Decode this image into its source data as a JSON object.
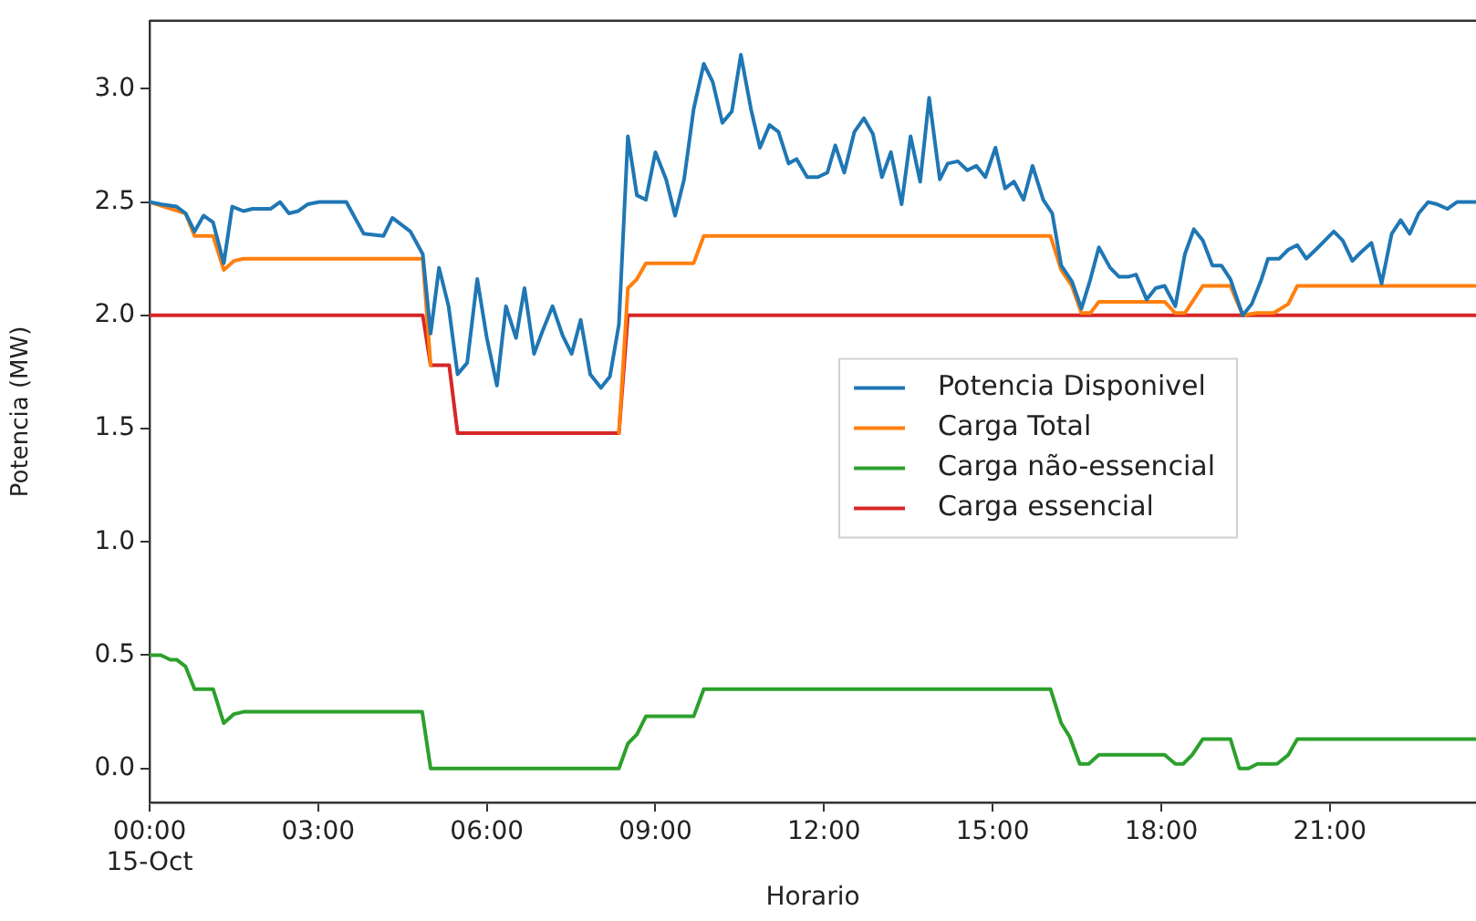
{
  "chart_data": {
    "type": "line",
    "xlabel": "Horario",
    "ylabel": "Potencia (MW)",
    "xlim": [
      0,
      23.6
    ],
    "ylim": [
      -0.15,
      3.3
    ],
    "xticks": [
      {
        "value": 0,
        "label": "00:00\n15-Oct"
      },
      {
        "value": 3,
        "label": "03:00"
      },
      {
        "value": 6,
        "label": "06:00"
      },
      {
        "value": 9,
        "label": "09:00"
      },
      {
        "value": 12,
        "label": "12:00"
      },
      {
        "value": 15,
        "label": "15:00"
      },
      {
        "value": 18,
        "label": "18:00"
      },
      {
        "value": 21,
        "label": "21:00"
      }
    ],
    "yticks": [
      {
        "value": 0,
        "label": "0.0"
      },
      {
        "value": 0.5,
        "label": "0.5"
      },
      {
        "value": 1,
        "label": "1.0"
      },
      {
        "value": 1.5,
        "label": "1.5"
      },
      {
        "value": 2,
        "label": "2.0"
      },
      {
        "value": 2.5,
        "label": "2.5"
      },
      {
        "value": 3,
        "label": "3.0"
      }
    ],
    "grid": false,
    "legend": "center right",
    "marker": "none",
    "line_style": "solid",
    "series": [
      {
        "name": "Potencia Disponivel",
        "color": "#1f77b4",
        "x": [
          0,
          0.2,
          0.48,
          0.64,
          0.8,
          0.96,
          1.13,
          1.32,
          1.47,
          1.67,
          1.83,
          1.99,
          2.15,
          2.32,
          2.48,
          2.64,
          2.81,
          3.02,
          3.5,
          3.81,
          4.16,
          4.32,
          4.64,
          4.86,
          5.0,
          5.15,
          5.32,
          5.48,
          5.65,
          5.83,
          6.0,
          6.18,
          6.34,
          6.52,
          6.67,
          6.84,
          6.99,
          7.17,
          7.35,
          7.51,
          7.67,
          7.84,
          8.03,
          8.19,
          8.35,
          8.51,
          8.67,
          8.83,
          9.0,
          9.19,
          9.35,
          9.51,
          9.68,
          9.86,
          10.02,
          10.19,
          10.36,
          10.52,
          10.7,
          10.86,
          11.03,
          11.19,
          11.37,
          11.51,
          11.7,
          11.89,
          12.06,
          12.2,
          12.36,
          12.54,
          12.71,
          12.87,
          13.03,
          13.19,
          13.38,
          13.54,
          13.71,
          13.87,
          14.06,
          14.2,
          14.38,
          14.55,
          14.71,
          14.87,
          15.05,
          15.22,
          15.38,
          15.55,
          15.71,
          15.9,
          16.06,
          16.22,
          16.41,
          16.58,
          16.74,
          16.89,
          17.09,
          17.25,
          17.41,
          17.55,
          17.74,
          17.9,
          18.06,
          18.25,
          18.42,
          18.58,
          18.74,
          18.91,
          19.07,
          19.23,
          19.45,
          19.61,
          19.77,
          19.9,
          20.1,
          20.26,
          20.42,
          20.58,
          20.75,
          20.91,
          21.07,
          21.23,
          21.4,
          21.56,
          21.74,
          21.92,
          22.1,
          22.26,
          22.42,
          22.58,
          22.75,
          22.91,
          23.09,
          23.26,
          23.6
        ],
        "values": [
          2.5,
          2.49,
          2.48,
          2.45,
          2.37,
          2.44,
          2.41,
          2.23,
          2.48,
          2.46,
          2.47,
          2.47,
          2.47,
          2.5,
          2.45,
          2.46,
          2.49,
          2.5,
          2.5,
          2.36,
          2.35,
          2.43,
          2.37,
          2.27,
          1.92,
          2.21,
          2.04,
          1.74,
          1.79,
          2.16,
          1.9,
          1.69,
          2.04,
          1.9,
          2.12,
          1.83,
          1.93,
          2.04,
          1.91,
          1.83,
          1.98,
          1.74,
          1.68,
          1.73,
          1.96,
          2.79,
          2.53,
          2.51,
          2.72,
          2.6,
          2.44,
          2.6,
          2.91,
          3.11,
          3.03,
          2.85,
          2.9,
          3.15,
          2.91,
          2.74,
          2.84,
          2.81,
          2.67,
          2.69,
          2.61,
          2.61,
          2.63,
          2.75,
          2.63,
          2.81,
          2.87,
          2.8,
          2.61,
          2.72,
          2.49,
          2.79,
          2.59,
          2.96,
          2.6,
          2.67,
          2.68,
          2.64,
          2.66,
          2.61,
          2.74,
          2.56,
          2.59,
          2.51,
          2.66,
          2.51,
          2.45,
          2.22,
          2.15,
          2.03,
          2.16,
          2.3,
          2.21,
          2.17,
          2.17,
          2.18,
          2.07,
          2.12,
          2.13,
          2.04,
          2.27,
          2.38,
          2.33,
          2.22,
          2.22,
          2.16,
          2.0,
          2.05,
          2.15,
          2.25,
          2.25,
          2.29,
          2.31,
          2.25,
          2.29,
          2.33,
          2.37,
          2.33,
          2.24,
          2.28,
          2.32,
          2.14,
          2.36,
          2.42,
          2.36,
          2.45,
          2.5,
          2.49,
          2.47,
          2.5,
          2.5
        ]
      },
      {
        "name": "Carga Total",
        "color": "#ff7f0e",
        "x": [
          0,
          0.64,
          0.8,
          1.13,
          1.32,
          1.5,
          1.67,
          4.86,
          5.0,
          6.5,
          8.35,
          8.51,
          8.67,
          8.83,
          9.68,
          9.86,
          16.03,
          16.22,
          16.41,
          16.58,
          16.74,
          16.89,
          18.06,
          18.25,
          18.42,
          18.58,
          18.74,
          19.23,
          19.45,
          19.7,
          20.0,
          20.26,
          20.42,
          23.6
        ],
        "values": [
          2.5,
          2.45,
          2.35,
          2.35,
          2.2,
          2.24,
          2.25,
          2.25,
          1.78,
          null,
          1.48,
          2.12,
          2.16,
          2.23,
          2.23,
          2.35,
          2.35,
          2.2,
          2.13,
          2.01,
          2.01,
          2.06,
          2.06,
          2.01,
          2.01,
          2.07,
          2.13,
          2.13,
          2.0,
          2.01,
          2.01,
          2.05,
          2.13,
          2.13
        ]
      },
      {
        "name": "Carga não-essencial",
        "color": "#2ca02c",
        "x": [
          0,
          0.2,
          0.37,
          0.48,
          0.64,
          0.8,
          1.13,
          1.32,
          1.5,
          1.67,
          4.85,
          5.0,
          8.35,
          8.51,
          8.67,
          8.83,
          9.68,
          9.86,
          16.03,
          16.22,
          16.37,
          16.55,
          16.71,
          16.89,
          18.06,
          18.25,
          18.39,
          18.55,
          18.74,
          19.23,
          19.39,
          19.55,
          19.71,
          20.06,
          20.26,
          20.42,
          23.6
        ],
        "values": [
          0.5,
          0.5,
          0.48,
          0.48,
          0.45,
          0.35,
          0.35,
          0.2,
          0.24,
          0.25,
          0.25,
          0.0,
          0.0,
          0.11,
          0.15,
          0.23,
          0.23,
          0.35,
          0.35,
          0.2,
          0.14,
          0.02,
          0.02,
          0.06,
          0.06,
          0.02,
          0.02,
          0.06,
          0.13,
          0.13,
          0.0,
          0.0,
          0.02,
          0.02,
          0.06,
          0.13,
          0.13
        ]
      },
      {
        "name": "Carga essencial",
        "color": "#d62728",
        "x": [
          0,
          4.86,
          5.0,
          5.33,
          5.48,
          8.35,
          8.51,
          23.6
        ],
        "values": [
          2.0,
          2.0,
          1.78,
          1.78,
          1.48,
          1.48,
          2.0,
          2.0
        ]
      }
    ]
  }
}
